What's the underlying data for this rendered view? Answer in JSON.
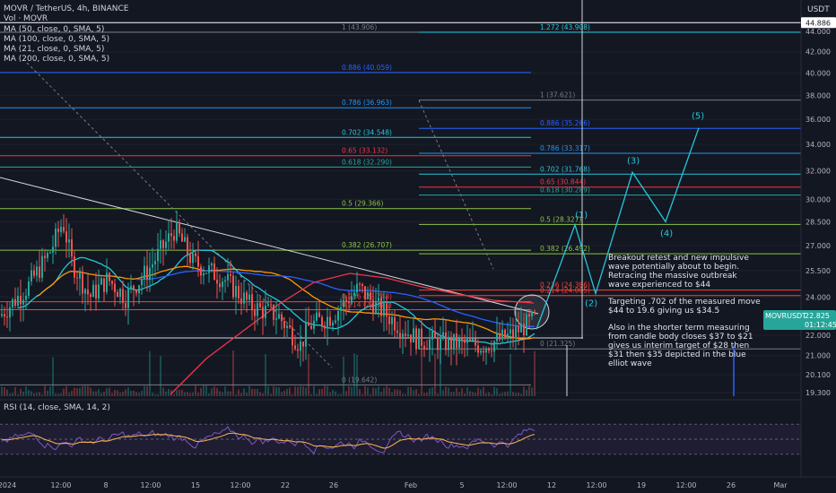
{
  "header": {
    "symbol_line": "MOVR / TetherUS, 4h, BINANCE",
    "volume_label": "Vol · MOVR",
    "indicators": [
      "MA (50, close, 0, SMA, 5)",
      "MA (100, close, 0, SMA, 5)",
      "MA (21, close, 0, SMA, 5)",
      "MA (200, close, 0, SMA, 5)"
    ],
    "currency": "USDT"
  },
  "price_tag": {
    "symbol": "MOVRUSDT",
    "price": "22.825",
    "countdown": "01:12:45"
  },
  "top_tag": "44.886",
  "rsi_label": "RSI (14, close, SMA, 14, 2)",
  "annotation": {
    "p1": "Breakout retest and new impulsive wave potentially about to begin. Retracing the massive outbreak wave experienced to $44",
    "p2": "Targeting .702 of the measured move $44 to 19.6 giving us $34.5",
    "p3": "Also in the shorter term measuring from candle body closes $37 to $21 gives us interim target of $28 then $31 then $35 depicted in the blue elliot wave"
  },
  "colors": {
    "background": "#131722",
    "bull": "#26a69a",
    "bear": "#ef5350",
    "ma50": "#2962ff",
    "ma100": "#f23645",
    "ma21": "#26c6da",
    "ma200": "#ff9800",
    "rsi": "#7e57c2",
    "elliott": "#26c6da"
  },
  "chart_data": {
    "type": "candlestick",
    "y_axis": {
      "ticks": [
        44.0,
        42.0,
        40.0,
        38.0,
        36.0,
        34.0,
        32.0,
        30.0,
        28.5,
        27.0,
        25.5,
        24.0,
        22.0,
        21.0,
        20.1,
        19.3
      ],
      "tick_labels": [
        "44.000",
        "42.000",
        "40.000",
        "38.000",
        "36.000",
        "34.000",
        "32.000",
        "30.000",
        "28.500",
        "27.000",
        "25.500",
        "24.000",
        "22.000",
        "21.000",
        "20.100",
        "19.300"
      ],
      "scale": "log"
    },
    "x_axis": {
      "tick_labels": [
        "2024",
        "12:00",
        "8",
        "12:00",
        "15",
        "12:00",
        "22",
        "26",
        "Feb",
        "5",
        "12:00",
        "12",
        "12:00",
        "19",
        "12:00",
        "26",
        "Mar"
      ]
    },
    "fib_large": {
      "levels": [
        {
          "label": "1 (43.906)",
          "value": 43.906
        },
        {
          "label": "0.886 (40.059)",
          "value": 40.059
        },
        {
          "label": "0.786 (36.963)",
          "value": 36.963
        },
        {
          "label": "0.702 (34.548)",
          "value": 34.548
        },
        {
          "label": "0.65 (33.132)",
          "value": 33.132
        },
        {
          "label": "0.618 (32.290)",
          "value": 32.29
        },
        {
          "label": "0.5 (29.366)",
          "value": 29.366
        },
        {
          "label": "0.382 (26.707)",
          "value": 26.707
        },
        {
          "label": "0.236 (23.748)",
          "value": 23.748
        },
        {
          "label": "0.214 (23.321)",
          "value": 23.321
        },
        {
          "label": "0 (19.642)",
          "value": 19.642
        }
      ]
    },
    "fib_small": {
      "levels": [
        {
          "label": "1.272 (43.908)",
          "value": 43.908
        },
        {
          "label": "1 (37.621)",
          "value": 37.621
        },
        {
          "label": "0.886 (35.266)",
          "value": 35.266
        },
        {
          "label": "0.786 (33.317)",
          "value": 33.317
        },
        {
          "label": "0.702 (31.768)",
          "value": 31.768
        },
        {
          "label": "0.65 (30.844)",
          "value": 30.844
        },
        {
          "label": "0.618 (30.289)",
          "value": 30.289
        },
        {
          "label": "0.5 (28.327)",
          "value": 28.327
        },
        {
          "label": "0.382 (26.492)",
          "value": 26.492
        },
        {
          "label": "0.236 (24.386)",
          "value": 24.386
        },
        {
          "label": "0.214 (24.085)",
          "value": 24.085
        },
        {
          "label": "0 (21.325)",
          "value": 21.325
        }
      ]
    },
    "elliott_wave": [
      {
        "label": "",
        "value": 22.3
      },
      {
        "label": "(1)",
        "value": 28.3
      },
      {
        "label": "(2)",
        "value": 24.2
      },
      {
        "label": "(3)",
        "value": 31.9
      },
      {
        "label": "(4)",
        "value": 28.5
      },
      {
        "label": "(5)",
        "value": 35.3
      }
    ],
    "rsi": {
      "range": [
        0,
        100
      ],
      "ticks": [
        100,
        80,
        60,
        40
      ],
      "tick_labels": [
        "100.00",
        "80.00",
        "60.00",
        "40.00"
      ],
      "last": 57
    }
  }
}
